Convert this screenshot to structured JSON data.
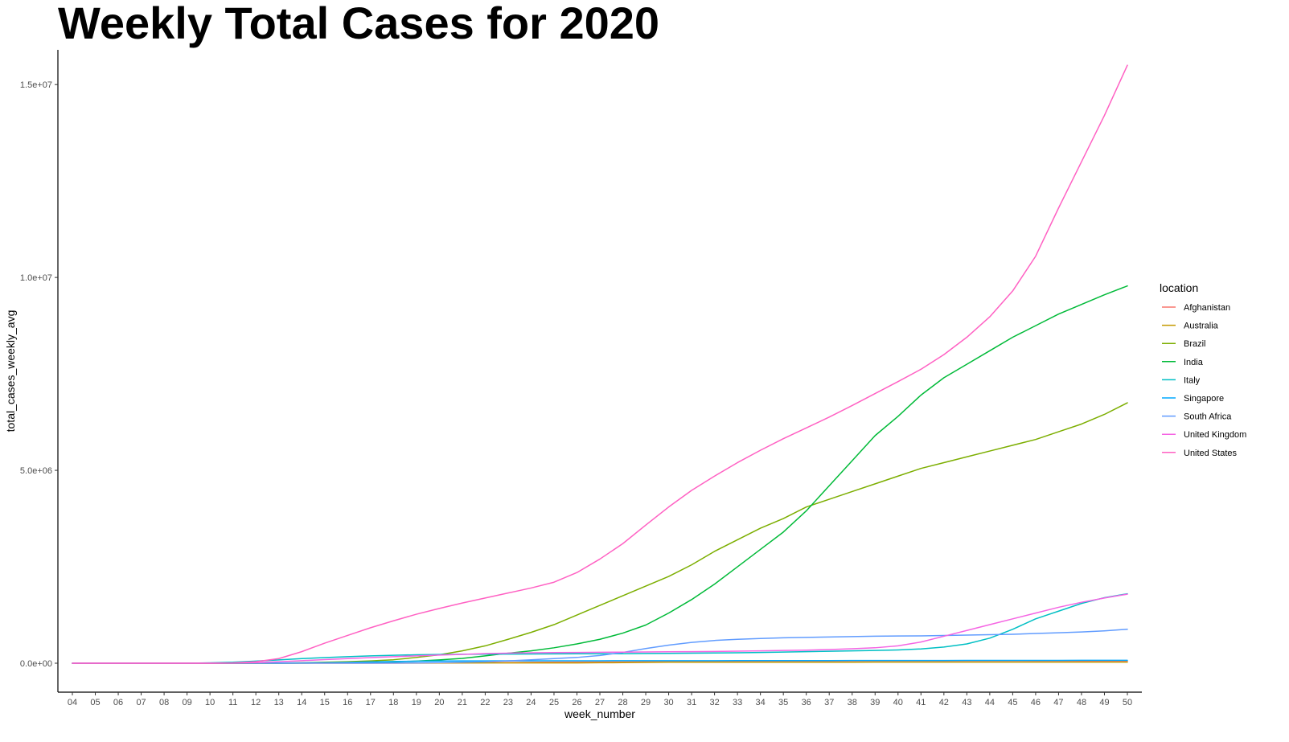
{
  "chart_data": {
    "type": "line",
    "title": "Weekly Total Cases for 2020",
    "xlabel": "week_number",
    "ylabel": "total_cases_weekly_avg",
    "x": [
      "04",
      "05",
      "06",
      "07",
      "08",
      "09",
      "10",
      "11",
      "12",
      "13",
      "14",
      "15",
      "16",
      "17",
      "18",
      "19",
      "20",
      "21",
      "22",
      "23",
      "24",
      "25",
      "26",
      "27",
      "28",
      "29",
      "30",
      "31",
      "32",
      "33",
      "34",
      "35",
      "36",
      "37",
      "38",
      "39",
      "40",
      "41",
      "42",
      "43",
      "44",
      "45",
      "46",
      "47",
      "48",
      "49",
      "50"
    ],
    "ylim": [
      -750000,
      15900000
    ],
    "y_ticks": [
      0,
      5000000,
      10000000,
      15000000
    ],
    "y_tick_labels": [
      "0.0e+00",
      "5.0e+06",
      "1.0e+07",
      "1.5e+07"
    ],
    "grid": false,
    "legend_title": "location",
    "legend_position": "right",
    "series": [
      {
        "name": "Afghanistan",
        "color": "#F8766D",
        "values": [
          0,
          0,
          0,
          0,
          0,
          0,
          0,
          0,
          0,
          0,
          100,
          200,
          500,
          900,
          1500,
          3000,
          5000,
          8000,
          12000,
          18000,
          24000,
          28000,
          31000,
          33000,
          35000,
          36000,
          37000,
          37500,
          38000,
          38500,
          39000,
          39200,
          39400,
          39600,
          39800,
          40000,
          40200,
          40400,
          40800,
          41200,
          41800,
          42500,
          43500,
          45000,
          46500,
          48000,
          49500
        ]
      },
      {
        "name": "Australia",
        "color": "#C49A00",
        "values": [
          0,
          10,
          15,
          15,
          20,
          25,
          60,
          200,
          1000,
          3500,
          5000,
          6200,
          6500,
          6700,
          6800,
          7000,
          7100,
          7200,
          7300,
          7500,
          7800,
          8000,
          9000,
          12000,
          16000,
          20000,
          25000,
          26000,
          26500,
          26800,
          27000,
          27200,
          27300,
          27400,
          27500,
          27600,
          27700,
          27800,
          27900,
          28000,
          28000,
          28100,
          28200,
          28300,
          28400,
          28500,
          28600
        ]
      },
      {
        "name": "Brazil",
        "color": "#7CAE00",
        "values": [
          0,
          0,
          0,
          0,
          0,
          1,
          20,
          100,
          600,
          3000,
          12000,
          25000,
          40000,
          60000,
          90000,
          150000,
          220000,
          320000,
          450000,
          620000,
          800000,
          1000000,
          1250000,
          1500000,
          1750000,
          2000000,
          2250000,
          2550000,
          2900000,
          3200000,
          3500000,
          3750000,
          4050000,
          4250000,
          4450000,
          4650000,
          4850000,
          5050000,
          5200000,
          5350000,
          5500000,
          5650000,
          5800000,
          6000000,
          6200000,
          6450000,
          6750000
        ]
      },
      {
        "name": "India",
        "color": "#00BA38",
        "values": [
          3,
          3,
          3,
          3,
          3,
          3,
          30,
          100,
          300,
          1000,
          3000,
          8000,
          14000,
          22000,
          35000,
          55000,
          85000,
          125000,
          190000,
          260000,
          320000,
          400000,
          500000,
          620000,
          780000,
          990000,
          1300000,
          1650000,
          2050000,
          2500000,
          2950000,
          3400000,
          3950000,
          4600000,
          5250000,
          5900000,
          6400000,
          6950000,
          7400000,
          7750000,
          8100000,
          8450000,
          8750000,
          9050000,
          9300000,
          9550000,
          9780000
        ]
      },
      {
        "name": "Italy",
        "color": "#00BFC4",
        "values": [
          0,
          0,
          3,
          3,
          20,
          1000,
          10000,
          25000,
          55000,
          85000,
          120000,
          145000,
          170000,
          190000,
          205000,
          220000,
          228000,
          232000,
          235000,
          238000,
          240000,
          242000,
          244000,
          246000,
          248000,
          252000,
          256000,
          260000,
          266000,
          272000,
          280000,
          290000,
          300000,
          310000,
          320000,
          330000,
          345000,
          370000,
          420000,
          500000,
          650000,
          880000,
          1150000,
          1350000,
          1550000,
          1700000,
          1800000
        ]
      },
      {
        "name": "Singapore",
        "color": "#00A9FF",
        "values": [
          10,
          40,
          100,
          150,
          400,
          1000,
          2000,
          3000,
          4500,
          6000,
          9000,
          14000,
          22000,
          35000,
          45000,
          53000,
          58000,
          60000,
          61000,
          62000,
          62500,
          63000,
          63500,
          64000,
          64500,
          65000,
          65500,
          66000,
          66500,
          67000,
          67500,
          68000,
          68500,
          69000,
          69500,
          70000,
          70500,
          71000,
          71500,
          72000,
          72500,
          73000,
          73500,
          74000,
          74500,
          75000,
          75500
        ]
      },
      {
        "name": "South Africa",
        "color": "#619CFF",
        "values": [
          0,
          0,
          0,
          0,
          0,
          0,
          0,
          60,
          600,
          1200,
          1700,
          2200,
          2700,
          3500,
          5000,
          8000,
          15000,
          25000,
          40000,
          60000,
          90000,
          120000,
          150000,
          200000,
          280000,
          380000,
          470000,
          540000,
          590000,
          620000,
          640000,
          660000,
          670000,
          680000,
          690000,
          700000,
          705000,
          710000,
          720000,
          730000,
          740000,
          750000,
          770000,
          790000,
          810000,
          840000,
          880000
        ]
      },
      {
        "name": "United Kingdom",
        "color": "#F564E3",
        "values": [
          0,
          5,
          10,
          15,
          20,
          100,
          600,
          3000,
          15000,
          40000,
          65000,
          95000,
          120000,
          145000,
          170000,
          190000,
          210000,
          230000,
          250000,
          262000,
          270000,
          276000,
          280000,
          284000,
          288000,
          292000,
          296000,
          300000,
          305000,
          312000,
          320000,
          330000,
          340000,
          355000,
          375000,
          400000,
          450000,
          550000,
          700000,
          850000,
          1000000,
          1150000,
          1300000,
          1450000,
          1580000,
          1690000,
          1790000
        ]
      },
      {
        "name": "United States",
        "color": "#FF61C3",
        "values": [
          1,
          2,
          5,
          10,
          30,
          100,
          800,
          8000,
          40000,
          120000,
          300000,
          520000,
          720000,
          920000,
          1100000,
          1270000,
          1420000,
          1560000,
          1690000,
          1820000,
          1950000,
          2100000,
          2350000,
          2700000,
          3100000,
          3580000,
          4050000,
          4480000,
          4850000,
          5200000,
          5520000,
          5820000,
          6100000,
          6380000,
          6680000,
          6990000,
          7300000,
          7620000,
          8000000,
          8450000,
          8980000,
          9650000,
          10550000,
          11800000,
          13000000,
          14200000,
          15500000
        ]
      }
    ]
  }
}
